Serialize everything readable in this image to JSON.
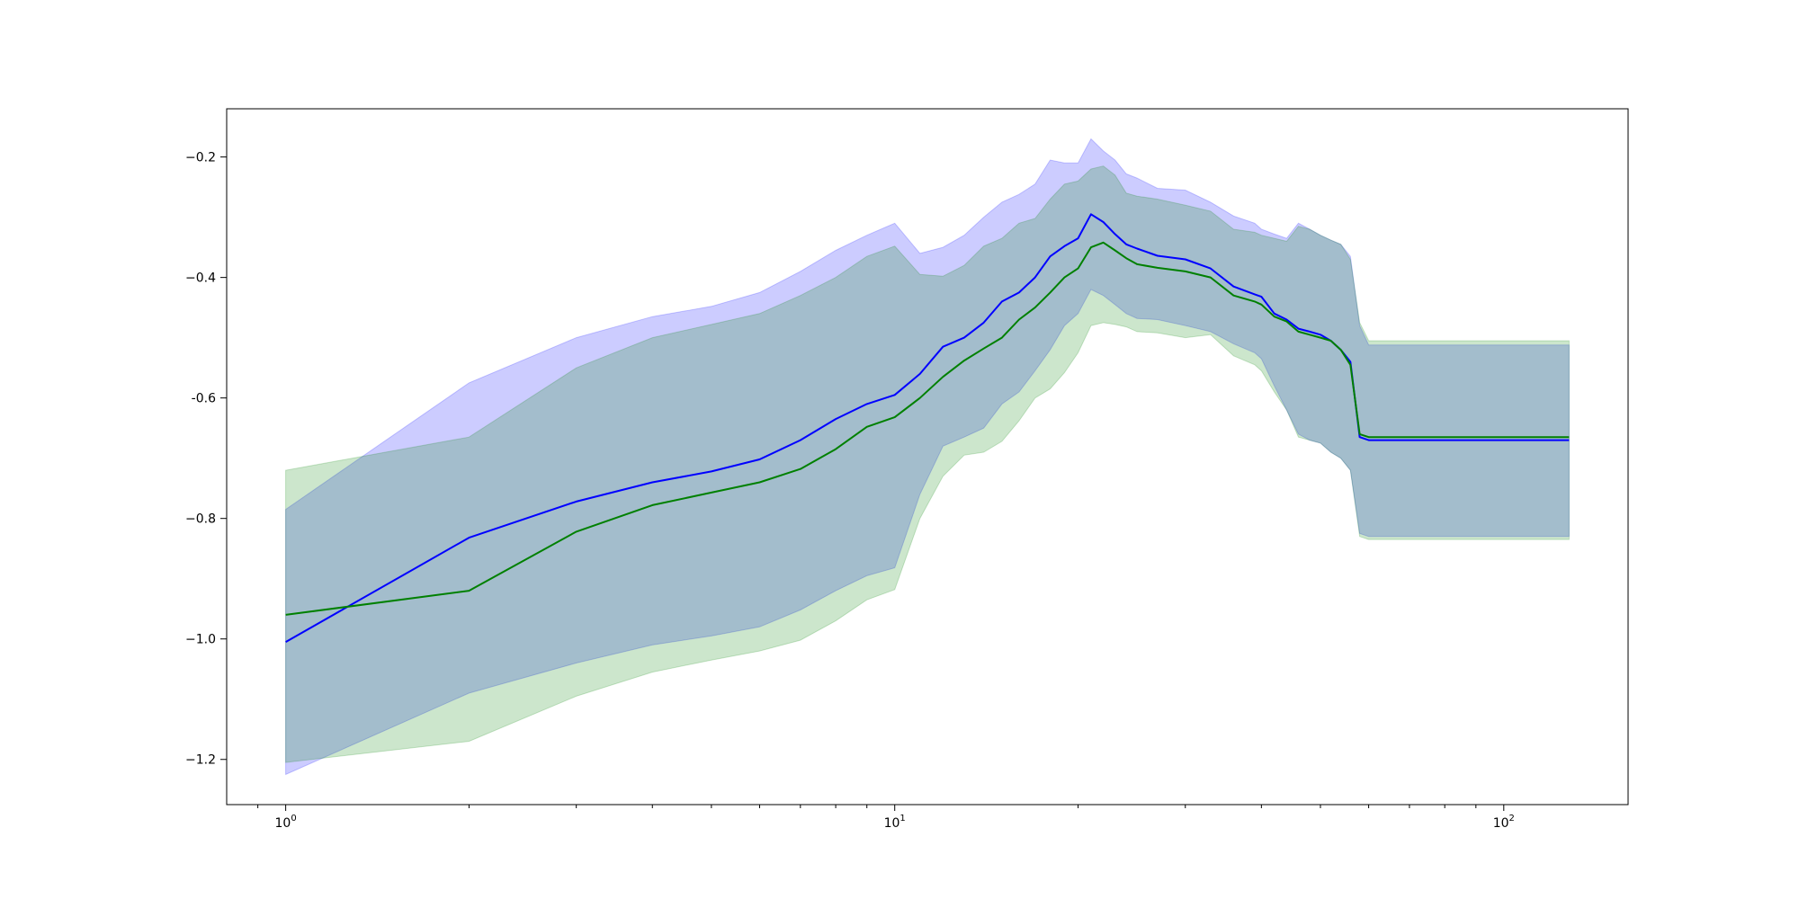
{
  "chart_data": {
    "type": "area",
    "title": "",
    "xlabel": "",
    "ylabel": "",
    "xscale": "log",
    "xlim": [
      0.8,
      160
    ],
    "ylim": [
      -1.275,
      -0.12
    ],
    "grid": false,
    "legend": "none",
    "x_ticks": [
      {
        "value": 1,
        "base": "10",
        "exp": "0"
      },
      {
        "value": 10,
        "base": "10",
        "exp": "1"
      },
      {
        "value": 100,
        "base": "10",
        "exp": "2"
      }
    ],
    "y_ticks": [
      {
        "value": -0.2,
        "label": "−0.2"
      },
      {
        "value": -0.4,
        "label": "−0.4"
      },
      {
        "value": -0.6,
        "label": "-0.6"
      },
      {
        "value": -0.8,
        "label": "−0.8"
      },
      {
        "value": -1.0,
        "label": "−1.0"
      },
      {
        "value": -1.2,
        "label": "−1.2"
      }
    ],
    "series": [
      {
        "color": "#0000ff",
        "fill_color": "#0000ff",
        "x": [
          1,
          2,
          3,
          4,
          5,
          6,
          7,
          8,
          9,
          10,
          11,
          12,
          13,
          14,
          15,
          16,
          17,
          18,
          19,
          20,
          21,
          22,
          23,
          24,
          25,
          27,
          30,
          33,
          36,
          39,
          40,
          42,
          44,
          46,
          48,
          50,
          52,
          54,
          56,
          58,
          60,
          128
        ],
        "y": [
          -1.005,
          -0.832,
          -0.772,
          -0.74,
          -0.722,
          -0.702,
          -0.67,
          -0.635,
          -0.61,
          -0.595,
          -0.56,
          -0.515,
          -0.5,
          -0.475,
          -0.44,
          -0.425,
          -0.4,
          -0.365,
          -0.348,
          -0.335,
          -0.295,
          -0.308,
          -0.328,
          -0.345,
          -0.352,
          -0.364,
          -0.37,
          -0.385,
          -0.415,
          -0.428,
          -0.432,
          -0.46,
          -0.47,
          -0.485,
          -0.49,
          -0.495,
          -0.505,
          -0.52,
          -0.54,
          -0.665,
          -0.67,
          -0.67
        ],
        "upper": [
          -0.785,
          -0.575,
          -0.5,
          -0.465,
          -0.448,
          -0.425,
          -0.39,
          -0.355,
          -0.33,
          -0.31,
          -0.36,
          -0.35,
          -0.33,
          -0.3,
          -0.275,
          -0.262,
          -0.245,
          -0.205,
          -0.21,
          -0.21,
          -0.17,
          -0.19,
          -0.205,
          -0.228,
          -0.235,
          -0.252,
          -0.255,
          -0.275,
          -0.298,
          -0.31,
          -0.32,
          -0.328,
          -0.335,
          -0.31,
          -0.32,
          -0.33,
          -0.338,
          -0.345,
          -0.365,
          -0.48,
          -0.512,
          -0.512
        ],
        "lower": [
          -1.225,
          -1.09,
          -1.04,
          -1.01,
          -0.995,
          -0.98,
          -0.952,
          -0.92,
          -0.895,
          -0.882,
          -0.76,
          -0.68,
          -0.665,
          -0.65,
          -0.61,
          -0.59,
          -0.555,
          -0.52,
          -0.48,
          -0.46,
          -0.42,
          -0.43,
          -0.445,
          -0.46,
          -0.468,
          -0.47,
          -0.48,
          -0.49,
          -0.51,
          -0.525,
          -0.535,
          -0.58,
          -0.62,
          -0.66,
          -0.67,
          -0.675,
          -0.69,
          -0.7,
          -0.72,
          -0.825,
          -0.83,
          -0.83
        ]
      },
      {
        "color": "#008000",
        "fill_color": "#008000",
        "x": [
          1,
          2,
          3,
          4,
          5,
          6,
          7,
          8,
          9,
          10,
          11,
          12,
          13,
          14,
          15,
          16,
          17,
          18,
          19,
          20,
          21,
          22,
          23,
          24,
          25,
          27,
          30,
          33,
          36,
          39,
          40,
          42,
          44,
          46,
          48,
          50,
          52,
          54,
          56,
          58,
          60,
          128
        ],
        "y": [
          -0.96,
          -0.92,
          -0.822,
          -0.778,
          -0.757,
          -0.74,
          -0.718,
          -0.685,
          -0.648,
          -0.632,
          -0.6,
          -0.565,
          -0.538,
          -0.518,
          -0.5,
          -0.47,
          -0.45,
          -0.425,
          -0.4,
          -0.385,
          -0.35,
          -0.342,
          -0.355,
          -0.368,
          -0.378,
          -0.384,
          -0.39,
          -0.4,
          -0.43,
          -0.44,
          -0.445,
          -0.465,
          -0.473,
          -0.49,
          -0.495,
          -0.5,
          -0.505,
          -0.52,
          -0.545,
          -0.66,
          -0.665,
          -0.665
        ],
        "upper": [
          -0.72,
          -0.665,
          -0.55,
          -0.5,
          -0.478,
          -0.46,
          -0.43,
          -0.4,
          -0.365,
          -0.348,
          -0.395,
          -0.398,
          -0.38,
          -0.348,
          -0.335,
          -0.31,
          -0.302,
          -0.27,
          -0.245,
          -0.24,
          -0.22,
          -0.215,
          -0.23,
          -0.26,
          -0.265,
          -0.27,
          -0.28,
          -0.29,
          -0.32,
          -0.325,
          -0.33,
          -0.335,
          -0.34,
          -0.315,
          -0.32,
          -0.33,
          -0.338,
          -0.345,
          -0.37,
          -0.475,
          -0.505,
          -0.505
        ],
        "lower": [
          -1.205,
          -1.17,
          -1.095,
          -1.055,
          -1.035,
          -1.02,
          -1.002,
          -0.97,
          -0.935,
          -0.918,
          -0.8,
          -0.73,
          -0.695,
          -0.69,
          -0.672,
          -0.638,
          -0.6,
          -0.585,
          -0.558,
          -0.525,
          -0.48,
          -0.475,
          -0.478,
          -0.482,
          -0.49,
          -0.492,
          -0.5,
          -0.495,
          -0.53,
          -0.545,
          -0.555,
          -0.59,
          -0.62,
          -0.665,
          -0.67,
          -0.675,
          -0.69,
          -0.7,
          -0.72,
          -0.83,
          -0.835,
          -0.835
        ]
      }
    ]
  }
}
